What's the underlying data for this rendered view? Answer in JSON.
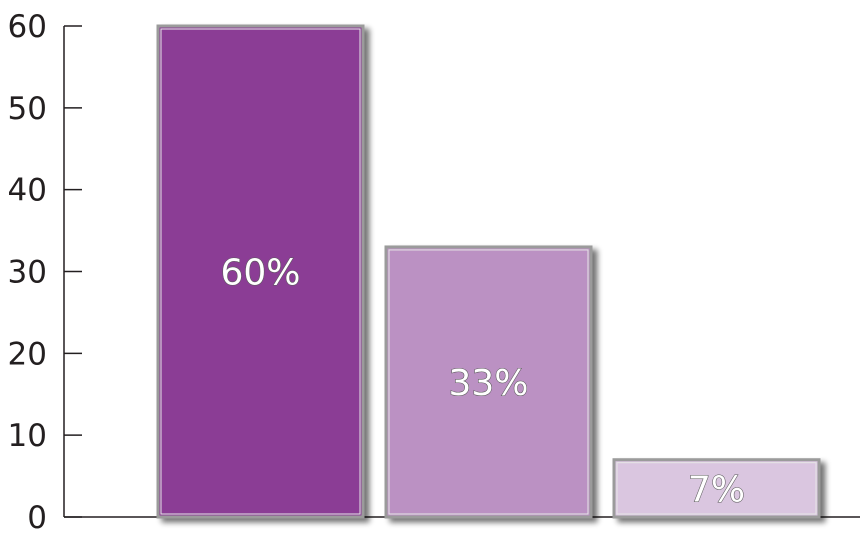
{
  "colors": {
    "axis": "#231f20",
    "bar_border": "#9b9b9b",
    "shadow": "#000000"
  },
  "chart_data": {
    "type": "bar",
    "categories": [
      "",
      "",
      ""
    ],
    "values": [
      60,
      33,
      7
    ],
    "data_labels": [
      "60%",
      "33%",
      "7%"
    ],
    "bar_colors": [
      "#8b3d95",
      "#bb91c3",
      "#dac6e0"
    ],
    "title": "",
    "xlabel": "",
    "ylabel": "",
    "ylim": [
      0,
      60
    ],
    "yticks": [
      0,
      10,
      20,
      30,
      40,
      50,
      60
    ],
    "grid": false,
    "legend": "none"
  }
}
